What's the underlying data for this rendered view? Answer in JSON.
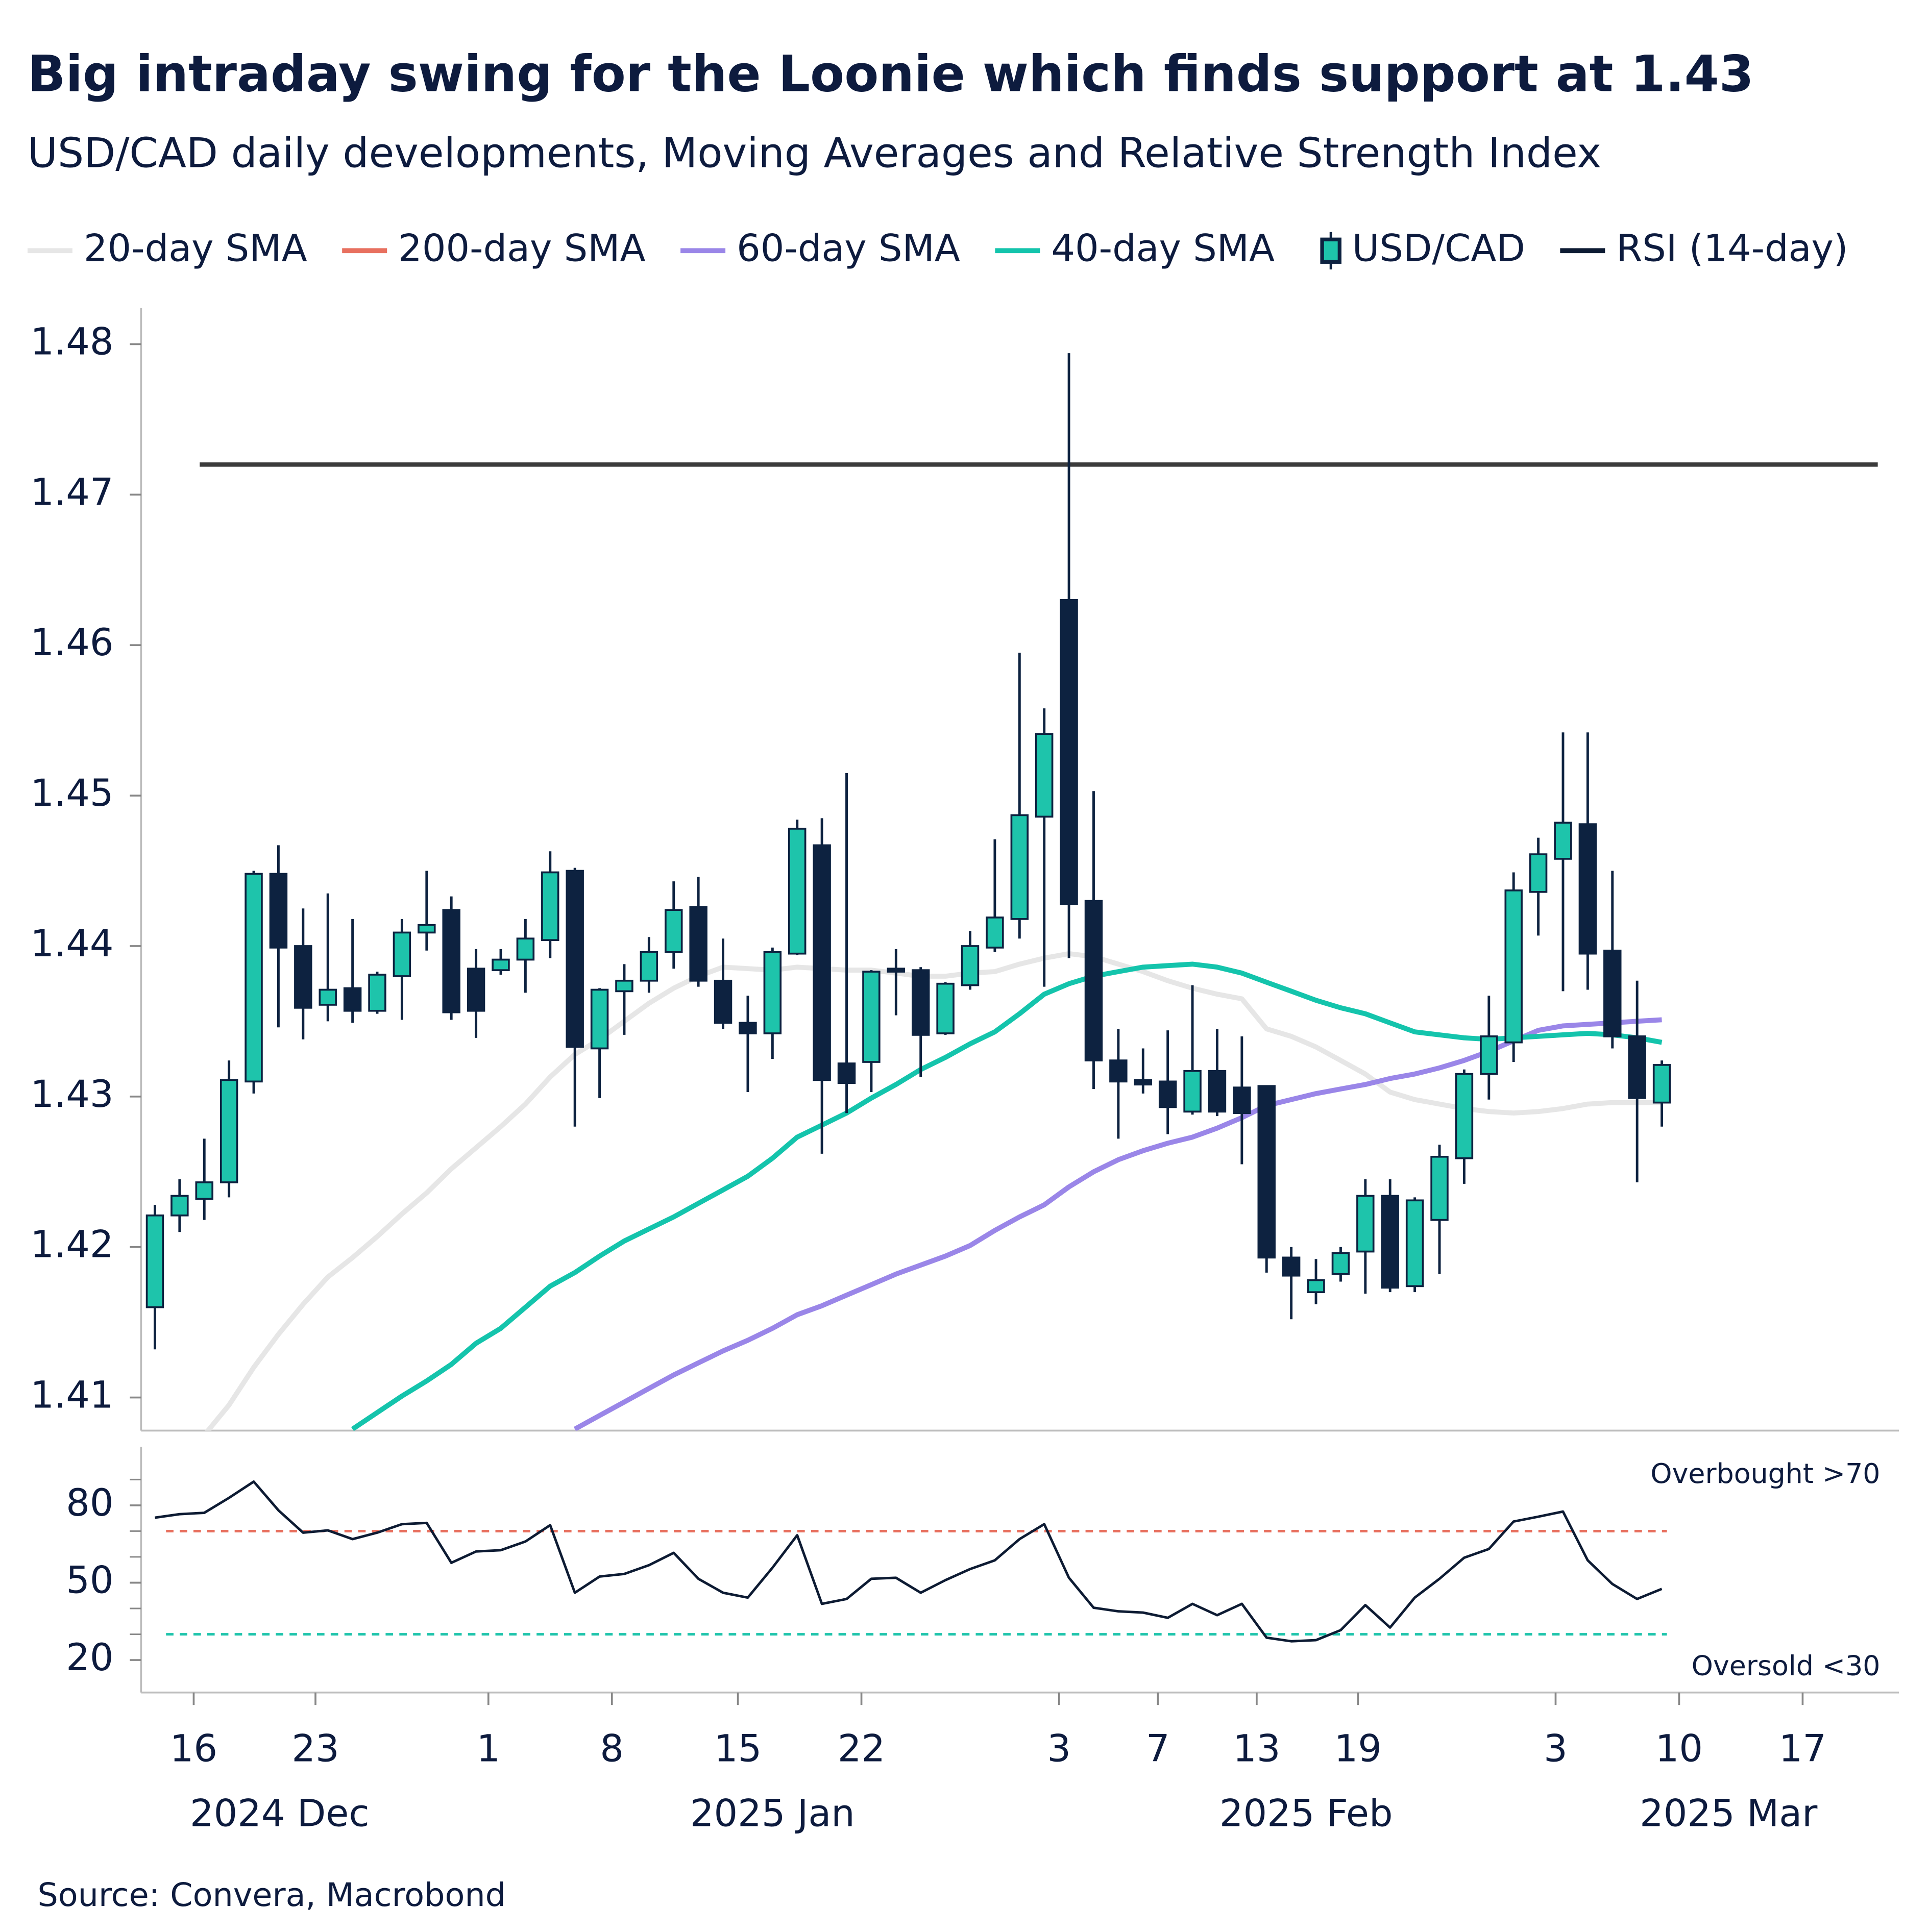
{
  "title": "Big intraday swing for the Loonie which finds support at 1.43",
  "subtitle": "USD/CAD daily developments, Moving Averages and Relative Strength Index",
  "source": "Source: Convera, Macrobond",
  "chart_data": [
    {
      "type": "candlestick",
      "xlim": [
        -0.56,
        70.6
      ],
      "ylim": [
        1.4078,
        1.4824
      ],
      "yticks": [
        1.41,
        1.42,
        1.43,
        1.44,
        1.45,
        1.46,
        1.47,
        1.48
      ],
      "reference_line": {
        "value": 1.472,
        "color": "#3b3b3b"
      },
      "series": [
        {
          "name": "20-day SMA",
          "color": "#e6e6e6",
          "values": [
            null,
            null,
            1.4075,
            1.4095,
            1.412,
            1.4142,
            1.4162,
            1.418,
            1.4193,
            1.4207,
            1.4222,
            1.4236,
            1.4252,
            1.4266,
            1.428,
            1.4295,
            1.4313,
            1.4328,
            1.4338,
            1.435,
            1.4362,
            1.4372,
            1.438,
            1.4386,
            1.4385,
            1.4384,
            1.4386,
            1.4385,
            1.4384,
            1.4384,
            1.4382,
            1.438,
            1.438,
            1.4382,
            1.4383,
            1.4388,
            1.4392,
            1.4395,
            1.4393,
            1.4388,
            1.4383,
            1.4377,
            1.4372,
            1.4368,
            1.4365,
            1.4345,
            1.434,
            1.4333,
            1.4324,
            1.4315,
            1.4303,
            1.4298,
            1.4295,
            1.4292,
            1.429,
            1.4289,
            1.429,
            1.4292,
            1.4295,
            1.4296,
            1.4296,
            1.4296
          ]
        },
        {
          "name": "200-day SMA",
          "color": "#e8705f",
          "values": [
            null,
            null,
            null,
            null,
            null,
            null,
            null,
            null,
            null,
            null,
            null,
            null,
            null,
            null,
            null,
            null,
            null,
            null,
            null,
            null,
            null,
            null,
            null,
            null,
            null,
            null,
            null,
            null,
            null,
            null,
            null,
            null,
            null,
            null,
            null,
            null,
            null,
            null,
            null,
            null,
            null,
            null,
            null,
            null,
            null,
            null,
            null,
            null,
            null,
            null,
            null,
            null,
            null,
            null,
            null,
            null,
            null,
            null,
            null,
            null,
            null,
            null
          ]
        },
        {
          "name": "60-day SMA",
          "color": "#9a86e8",
          "values": [
            null,
            null,
            null,
            null,
            null,
            null,
            null,
            null,
            null,
            null,
            null,
            null,
            null,
            null,
            null,
            null,
            null,
            1.4079,
            1.4088,
            1.4097,
            1.4106,
            1.4115,
            1.4123,
            1.4131,
            1.4138,
            1.4146,
            1.4155,
            1.4161,
            1.4168,
            1.4175,
            1.4182,
            1.4188,
            1.4194,
            1.4201,
            1.4211,
            1.422,
            1.4228,
            1.424,
            1.425,
            1.4258,
            1.4264,
            1.4269,
            1.4273,
            1.4279,
            1.4286,
            1.4294,
            1.4298,
            1.4302,
            1.4305,
            1.4308,
            1.4312,
            1.4315,
            1.4319,
            1.4324,
            1.433,
            1.4337,
            1.4344,
            1.4347,
            1.4348,
            1.4349,
            1.435,
            1.4351
          ]
        },
        {
          "name": "40-day SMA",
          "color": "#14c4ac",
          "values": [
            null,
            null,
            null,
            null,
            null,
            null,
            null,
            null,
            1.4079,
            1.409,
            1.4101,
            1.4111,
            1.4122,
            1.4136,
            1.4146,
            1.416,
            1.4174,
            1.4183,
            1.4194,
            1.4204,
            1.4212,
            1.422,
            1.4229,
            1.4238,
            1.4247,
            1.4259,
            1.4273,
            1.4281,
            1.4289,
            1.4299,
            1.4308,
            1.4318,
            1.4326,
            1.4335,
            1.4343,
            1.4355,
            1.4368,
            1.4375,
            1.438,
            1.4383,
            1.4386,
            1.4387,
            1.4388,
            1.4386,
            1.4382,
            1.4376,
            1.437,
            1.4364,
            1.4359,
            1.4355,
            1.4349,
            1.4343,
            1.4341,
            1.4339,
            1.4338,
            1.4339,
            1.434,
            1.4341,
            1.4342,
            1.4341,
            1.4339,
            1.4336
          ]
        },
        {
          "name": "USD/CAD",
          "type": "candlestick",
          "color": "#1ec4ab",
          "down_color": "#0d2240",
          "open": [
            1.416,
            1.4221,
            1.4232,
            1.4243,
            1.431,
            1.4448,
            1.44,
            1.4361,
            1.4372,
            1.4357,
            1.438,
            1.4409,
            1.4424,
            1.4385,
            1.4384,
            1.4391,
            1.4404,
            1.445,
            1.4332,
            1.437,
            1.4377,
            1.4396,
            1.4426,
            1.4377,
            1.4349,
            1.4342,
            1.4395,
            1.4467,
            1.4322,
            1.4323,
            1.4385,
            1.4384,
            1.4342,
            1.4374,
            1.4399,
            1.4418,
            1.4486,
            1.463,
            1.443,
            1.4324,
            1.4311,
            1.431,
            1.429,
            1.4317,
            1.4306,
            1.4307,
            1.4193,
            1.417,
            1.4182,
            1.4197,
            1.4234,
            1.4174,
            1.4218,
            1.4259,
            1.4315,
            1.4336,
            1.4436,
            1.4458,
            1.4481,
            1.4397,
            1.434,
            1.4296
          ],
          "high": [
            1.4228,
            1.4245,
            1.4272,
            1.4324,
            1.445,
            1.4467,
            1.4425,
            1.4435,
            1.4418,
            1.4383,
            1.4418,
            1.445,
            1.4433,
            1.4398,
            1.4398,
            1.4418,
            1.4463,
            1.4452,
            1.4372,
            1.4388,
            1.4406,
            1.4443,
            1.4446,
            1.4405,
            1.4367,
            1.4399,
            1.4484,
            1.4485,
            1.4515,
            1.4384,
            1.4398,
            1.4386,
            1.4376,
            1.441,
            1.4471,
            1.4595,
            1.4558,
            1.4794,
            1.4503,
            1.4345,
            1.4332,
            1.4344,
            1.4374,
            1.4345,
            1.434,
            1.4307,
            1.42,
            1.4192,
            1.42,
            1.4245,
            1.4245,
            1.4233,
            1.4268,
            1.4318,
            1.4367,
            1.4449,
            1.4472,
            1.4542,
            1.4542,
            1.445,
            1.4377,
            1.4324
          ],
          "low": [
            1.4132,
            1.421,
            1.4218,
            1.4233,
            1.4302,
            1.4346,
            1.4338,
            1.435,
            1.4349,
            1.4355,
            1.4351,
            1.4397,
            1.4351,
            1.4339,
            1.4381,
            1.4369,
            1.4392,
            1.428,
            1.4299,
            1.4341,
            1.4369,
            1.4385,
            1.4373,
            1.4345,
            1.4303,
            1.4325,
            1.4394,
            1.4262,
            1.4289,
            1.4303,
            1.4354,
            1.4313,
            1.4341,
            1.4371,
            1.4396,
            1.4405,
            1.4373,
            1.4392,
            1.4305,
            1.4272,
            1.4302,
            1.4275,
            1.4288,
            1.4287,
            1.4255,
            1.4183,
            1.4152,
            1.4162,
            1.4177,
            1.4169,
            1.417,
            1.417,
            1.4182,
            1.4242,
            1.4298,
            1.4323,
            1.4407,
            1.437,
            1.4371,
            1.4332,
            1.4243,
            1.428
          ],
          "close": [
            1.4221,
            1.4234,
            1.4243,
            1.4311,
            1.4448,
            1.4399,
            1.4359,
            1.4371,
            1.4357,
            1.4381,
            1.4409,
            1.4414,
            1.4356,
            1.4357,
            1.4391,
            1.4405,
            1.4449,
            1.4333,
            1.4371,
            1.4377,
            1.4396,
            1.4424,
            1.4377,
            1.4349,
            1.4342,
            1.4396,
            1.4478,
            1.4311,
            1.4309,
            1.4383,
            1.4383,
            1.4341,
            1.4375,
            1.44,
            1.4419,
            1.4487,
            1.4541,
            1.4428,
            1.4324,
            1.431,
            1.4308,
            1.4293,
            1.4317,
            1.429,
            1.4289,
            1.4193,
            1.4181,
            1.4178,
            1.4196,
            1.4234,
            1.4173,
            1.4231,
            1.426,
            1.4315,
            1.434,
            1.4437,
            1.4461,
            1.4482,
            1.4395,
            1.434,
            1.4299,
            1.4321
          ]
        }
      ]
    },
    {
      "type": "line",
      "xlim": [
        -0.56,
        70.6
      ],
      "xticks": [
        {
          "value": 1.57,
          "label": "16"
        },
        {
          "value": 6.5,
          "label": "23"
        },
        {
          "value": 13.5,
          "label": "1"
        },
        {
          "value": 18.5,
          "label": "8"
        },
        {
          "value": 23.6,
          "label": "15"
        },
        {
          "value": 28.6,
          "label": "22"
        },
        {
          "value": 36.6,
          "label": "3"
        },
        {
          "value": 40.6,
          "label": "7"
        },
        {
          "value": 44.6,
          "label": "13"
        },
        {
          "value": 48.7,
          "label": "19"
        },
        {
          "value": 56.7,
          "label": "3"
        },
        {
          "value": 61.7,
          "label": "10"
        },
        {
          "value": 66.7,
          "label": "17"
        }
      ],
      "xgroups": [
        {
          "value": 5.05,
          "label": "2024 Dec"
        },
        {
          "value": 25,
          "label": "2025 Jan"
        },
        {
          "value": 46.6,
          "label": "2025 Feb"
        },
        {
          "value": 63.7,
          "label": "2025 Mar"
        }
      ],
      "ylim": [
        7.4,
        102.7
      ],
      "yticks": [
        20,
        50,
        80
      ],
      "minor_yticks": [
        30,
        40,
        60,
        70,
        90
      ],
      "reference_lines": [
        {
          "value": 70,
          "color": "#e8705f",
          "label": "Overbought >70"
        },
        {
          "value": 30,
          "color": "#1ec4ab",
          "label": "Oversold <30"
        }
      ],
      "series": [
        {
          "name": "RSI (14-day)",
          "color": "#0d1b33",
          "values": [
            75.2,
            76.6,
            77.1,
            82.9,
            89.2,
            78.1,
            69.4,
            70.3,
            66.9,
            69.4,
            72.7,
            73.2,
            57.7,
            62.1,
            62.6,
            66.0,
            72.3,
            46.1,
            52.4,
            53.4,
            56.8,
            61.6,
            51.5,
            46.1,
            44.2,
            55.8,
            68.4,
            41.8,
            43.7,
            51.5,
            51.9,
            46.1,
            51.0,
            55.3,
            58.7,
            66.9,
            72.7,
            51.9,
            40.3,
            38.9,
            38.4,
            36.4,
            41.8,
            37.4,
            41.8,
            28.7,
            27.3,
            27.7,
            31.6,
            41.3,
            32.6,
            44.2,
            51.5,
            59.7,
            63.1,
            73.7,
            75.6,
            77.6,
            58.7,
            49.5,
            43.7,
            47.6
          ]
        }
      ]
    }
  ]
}
